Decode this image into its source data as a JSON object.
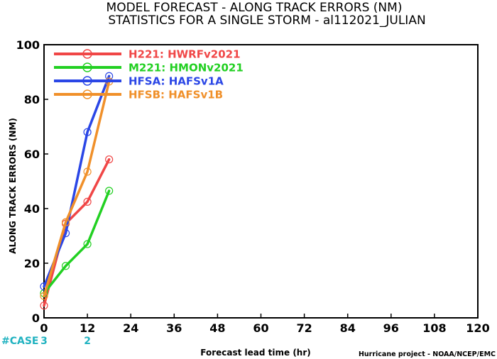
{
  "chart_data": {
    "type": "line",
    "title": "MODEL FORECAST - ALONG TRACK ERRORS (NM)",
    "subtitle": "STATISTICS FOR A SINGLE STORM - al112021_JULIAN",
    "xlabel": "Forecast lead time (hr)",
    "ylabel": "ALONG TRACK ERRORS (NM)",
    "xlim": [
      0,
      120
    ],
    "ylim": [
      0,
      100
    ],
    "x_ticks": [
      0,
      12,
      24,
      36,
      48,
      60,
      72,
      84,
      96,
      108,
      120
    ],
    "y_ticks": [
      0,
      20,
      40,
      60,
      80,
      100
    ],
    "grid": false,
    "legend_position": "top-left",
    "series": [
      {
        "name": "H221: HWRFv2021",
        "color": "#f04646",
        "x": [
          0,
          6,
          12,
          18
        ],
        "y": [
          4.5,
          34.5,
          42.5,
          58.0
        ]
      },
      {
        "name": "M221: HMONv2021",
        "color": "#22d022",
        "x": [
          0,
          6,
          12,
          18
        ],
        "y": [
          9.0,
          19.0,
          27.0,
          46.5
        ]
      },
      {
        "name": "HFSA: HAFSv1A",
        "color": "#2a46e6",
        "x": [
          0,
          6,
          12,
          18
        ],
        "y": [
          11.5,
          31.0,
          68.0,
          88.5
        ]
      },
      {
        "name": "HFSB: HAFSv1B",
        "color": "#f0902a",
        "x": [
          0,
          6,
          12,
          18
        ],
        "y": [
          8.0,
          35.0,
          53.5,
          86.5
        ]
      }
    ],
    "cases": {
      "label": "#CASE",
      "x": [
        0,
        12
      ],
      "values": [
        "3",
        "2"
      ]
    }
  },
  "credit": "Hurricane project - NOAA/NCEP/EMC"
}
